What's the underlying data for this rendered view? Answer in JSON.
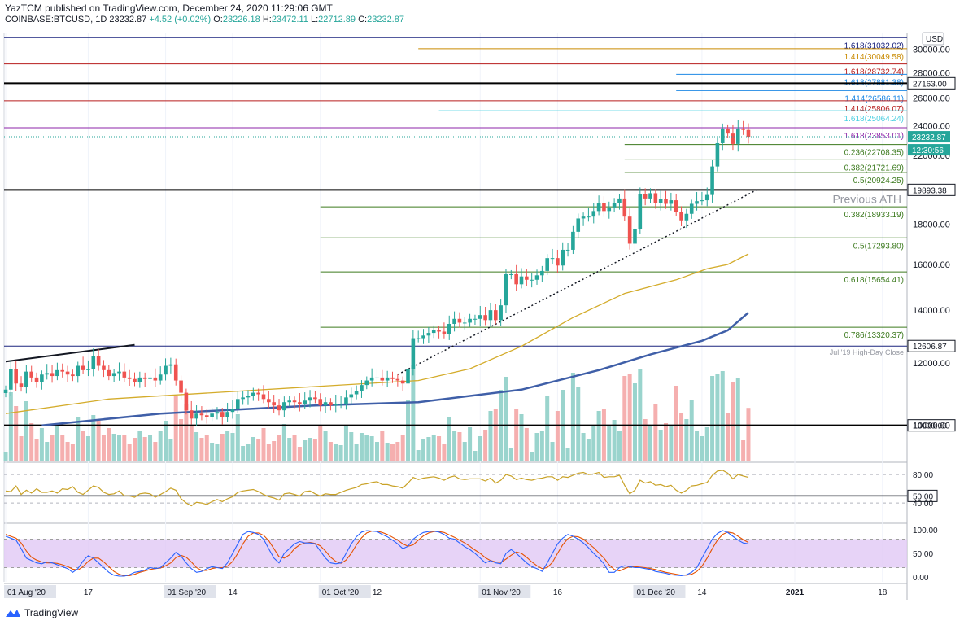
{
  "header": {
    "line1": "YazTCM published on TradingView.com, December 24, 2020 11:29:06 GMT",
    "symbol": "COINBASE:BTCUSD, 1D",
    "last": "23232.87",
    "change": "+4.52 (+0.02%)",
    "o_label": "O:",
    "o": "23226.18",
    "h_label": "H:",
    "h": "23472.11",
    "l_label": "L:",
    "l": "22712.89",
    "c_label": "C:",
    "c": "23232.87"
  },
  "footer": {
    "brand": "TradingView"
  },
  "colors": {
    "up": "#26a69a",
    "down": "#ef5350",
    "vol_up": "#8fcfc8",
    "vol_down": "#f4a6a6",
    "ma_fast": "#d4ac2b",
    "ma_slow": "#3f5fa8",
    "rsi": "#c9a227",
    "stoch_k": "#2962ff",
    "stoch_d": "#e65100",
    "stoch_band": "#e1c8f5",
    "fib_green": "#3c7a1e",
    "fib_blue": "#1e88e5",
    "fib_red": "#b71c1c",
    "fib_orange": "#c98a00",
    "fib_purple": "#8e24aa"
  },
  "chart_data": {
    "type": "candlestick",
    "pair": "BTCUSD",
    "currency": "USD",
    "yrange": [
      9000,
      31500
    ],
    "x_ticks": [
      {
        "label": "01 Aug '20",
        "day": 0,
        "boxed": true
      },
      {
        "label": "17",
        "day": 16
      },
      {
        "label": "01 Sep '20",
        "day": 31,
        "boxed": true
      },
      {
        "label": "14",
        "day": 44
      },
      {
        "label": "01 Oct '20",
        "day": 61,
        "boxed": true
      },
      {
        "label": "12",
        "day": 72
      },
      {
        "label": "01 Nov '20",
        "day": 92,
        "boxed": true
      },
      {
        "label": "16",
        "day": 107
      },
      {
        "label": "01 Dec '20",
        "day": 122,
        "boxed": true
      },
      {
        "label": "14",
        "day": 135
      },
      {
        "label": "2021",
        "day": 153,
        "bold": true
      },
      {
        "label": "18",
        "day": 170
      }
    ],
    "y_ticks": [
      "10000.00",
      "12000.00",
      "14000.00",
      "16000.00",
      "18000.00",
      "22000.00",
      "24000.00",
      "26000.00",
      "28000.00",
      "30000.00"
    ],
    "closes": [
      11100,
      11800,
      11300,
      11200,
      11700,
      11500,
      11350,
      11600,
      11650,
      11550,
      11750,
      11700,
      11600,
      11550,
      11900,
      11750,
      11800,
      12250,
      11900,
      11750,
      11550,
      11650,
      11700,
      11500,
      11450,
      11350,
      11500,
      11450,
      11500,
      11400,
      11600,
      11900,
      11950,
      11400,
      11000,
      10450,
      10200,
      10350,
      10300,
      10250,
      10350,
      10400,
      10250,
      10400,
      10500,
      10800,
      10850,
      10900,
      11000,
      10950,
      10800,
      10700,
      10600,
      10450,
      10700,
      10750,
      10700,
      10650,
      10750,
      10850,
      10800,
      10600,
      10700,
      10600,
      10650,
      10650,
      10850,
      10950,
      11050,
      11250,
      11400,
      11500,
      11500,
      11400,
      11500,
      11450,
      11400,
      11300,
      11800,
      12900,
      12900,
      13000,
      13100,
      13200,
      13150,
      13050,
      13450,
      13650,
      13500,
      13500,
      13650,
      13650,
      13800,
      13600,
      14000,
      13600,
      14200,
      15550,
      15550,
      15100,
      15450,
      15300,
      15300,
      15500,
      15700,
      16300,
      16300,
      15950,
      16700,
      16700,
      17600,
      18300,
      18400,
      18400,
      18700,
      19150,
      18700,
      18900,
      19150,
      19400,
      18400,
      17000,
      17750,
      19650,
      19400,
      19700,
      19150,
      19350,
      19100,
      19300,
      18650,
      18200,
      18550,
      19100,
      19250,
      19300,
      19600,
      21300,
      22800,
      23800,
      23450,
      22750,
      23800,
      23700,
      23232
    ],
    "ma_fast": [
      [
        0,
        10350
      ],
      [
        20,
        10800
      ],
      [
        40,
        11000
      ],
      [
        60,
        11200
      ],
      [
        80,
        11400
      ],
      [
        90,
        11800
      ],
      [
        100,
        12600
      ],
      [
        110,
        13700
      ],
      [
        120,
        14700
      ],
      [
        130,
        15300
      ],
      [
        136,
        15800
      ],
      [
        140,
        16000
      ],
      [
        144,
        16500
      ]
    ],
    "ma_slow": [
      [
        7,
        10000
      ],
      [
        30,
        10350
      ],
      [
        60,
        10600
      ],
      [
        80,
        10700
      ],
      [
        100,
        11100
      ],
      [
        115,
        11750
      ],
      [
        125,
        12300
      ],
      [
        135,
        12800
      ],
      [
        140,
        13200
      ],
      [
        144,
        13900
      ]
    ],
    "trendlines": [
      {
        "style": "solid",
        "from": [
          0,
          12050
        ],
        "to": [
          25,
          12650
        ]
      },
      {
        "style": "dotted",
        "from": [
          76,
          11600
        ],
        "to": [
          146,
          19950
        ]
      }
    ],
    "levels": [
      {
        "value": 31032.02,
        "label": "1.618(31032.02)",
        "color": "#1a237e",
        "from_day": -1
      },
      {
        "value": 30049.58,
        "label": "1.414(30049.58)",
        "color": "#c98a00",
        "from_day": 80
      },
      {
        "value": 28732.74,
        "label": "1.618(28732.74)",
        "color": "#b71c1c",
        "from_day": -1
      },
      {
        "value": 27881.38,
        "label": "1.618(27881.38)",
        "color": "#1e88e5",
        "from_day": 130
      },
      {
        "value": 27163.0,
        "label": "27163.00",
        "color": "#000000",
        "from_day": -1,
        "black": true
      },
      {
        "value": 26586.11,
        "label": "1.414(26586.11)",
        "color": "#1e88e5",
        "from_day": 130
      },
      {
        "value": 25806.07,
        "label": "1.414(25806.07)",
        "color": "#b71c1c",
        "from_day": -1
      },
      {
        "value": 25064.24,
        "label": "1.618(25064.24)",
        "color": "#4dd0e1",
        "from_day": 84
      },
      {
        "value": 23853.01,
        "label": "1.618(23853.01)",
        "color": "#8e24aa",
        "from_day": -1
      },
      {
        "value": 22708.35,
        "label": "0.236(22708.35)",
        "color": "#3c7a1e",
        "from_day": 120
      },
      {
        "value": 21721.69,
        "label": "0.382(21721.69)",
        "color": "#3c7a1e",
        "from_day": 120
      },
      {
        "value": 20924.25,
        "label": "0.5(20924.25)",
        "color": "#3c7a1e",
        "from_day": 120
      },
      {
        "value": 19893.38,
        "label": "19893.38",
        "color": "#000000",
        "from_day": -1,
        "black": true
      },
      {
        "value": 18933.19,
        "label": "0.382(18933.19)",
        "color": "#3c7a1e",
        "from_day": 61
      },
      {
        "value": 17293.8,
        "label": "0.5(17293.80)",
        "color": "#3c7a1e",
        "from_day": 61
      },
      {
        "value": 15654.41,
        "label": "0.618(15654.41)",
        "color": "#3c7a1e",
        "from_day": 61
      },
      {
        "value": 13320.37,
        "label": "0.786(13320.37)",
        "color": "#3c7a1e",
        "from_day": 61
      },
      {
        "value": 12606.87,
        "label": "12606.87",
        "color": "#1a237e",
        "from_day": -1,
        "navy": true
      },
      {
        "value": 10000.0,
        "label": "10000.00",
        "color": "#000000",
        "from_day": -1,
        "black": true
      }
    ],
    "last_price": {
      "value": 23232.87,
      "label": "23232.87",
      "countdown": "12:30:56"
    },
    "annotations": [
      {
        "text": "Previous ATH",
        "value": 19893.38
      },
      {
        "text": "Jul '19 High-Day Close",
        "value": 12606.87
      }
    ],
    "rsi": {
      "ticks": [
        "80.00",
        "50.00",
        "40.00"
      ],
      "level_boxed": "50.00",
      "values": [
        57,
        56,
        64,
        52,
        58,
        54,
        60,
        55,
        55,
        57,
        54,
        60,
        59,
        63,
        55,
        52,
        58,
        64,
        62,
        55,
        52,
        53,
        57,
        50,
        50,
        48,
        53,
        54,
        53,
        48,
        52,
        56,
        61,
        58,
        46,
        40,
        36,
        41,
        40,
        38,
        42,
        45,
        42,
        46,
        49,
        55,
        57,
        58,
        59,
        56,
        52,
        49,
        47,
        44,
        53,
        54,
        52,
        50,
        56,
        57,
        53,
        50,
        53,
        52,
        52,
        55,
        58,
        60,
        62,
        66,
        67,
        69,
        70,
        66,
        66,
        64,
        63,
        61,
        68,
        76,
        73,
        75,
        76,
        77,
        75,
        72,
        76,
        78,
        74,
        73,
        74,
        74,
        74,
        71,
        75,
        68,
        72,
        80,
        78,
        73,
        75,
        73,
        72,
        74,
        75,
        77,
        77,
        72,
        77,
        76,
        79,
        82,
        83,
        80,
        81,
        83,
        76,
        77,
        77,
        79,
        65,
        53,
        58,
        72,
        68,
        70,
        65,
        66,
        63,
        65,
        58,
        54,
        58,
        64,
        65,
        67,
        69,
        79,
        85,
        86,
        82,
        74,
        80,
        78,
        76
      ]
    },
    "stoch": {
      "ticks": [
        "100.00",
        "50.00",
        "0.00"
      ],
      "k": [
        86,
        82,
        78,
        60,
        40,
        35,
        30,
        28,
        32,
        30,
        26,
        22,
        18,
        10,
        18,
        34,
        45,
        40,
        30,
        20,
        10,
        4,
        2,
        2,
        5,
        10,
        12,
        15,
        20,
        18,
        20,
        30,
        40,
        52,
        44,
        30,
        18,
        10,
        12,
        18,
        22,
        20,
        18,
        30,
        50,
        70,
        90,
        96,
        94,
        90,
        80,
        60,
        40,
        30,
        50,
        60,
        70,
        75,
        72,
        72,
        70,
        55,
        40,
        30,
        28,
        30,
        50,
        70,
        85,
        95,
        98,
        97,
        96,
        90,
        85,
        78,
        70,
        60,
        65,
        80,
        88,
        94,
        96,
        97,
        95,
        90,
        82,
        80,
        72,
        64,
        58,
        50,
        40,
        30,
        35,
        30,
        28,
        50,
        58,
        50,
        40,
        30,
        22,
        18,
        12,
        30,
        50,
        70,
        82,
        90,
        86,
        80,
        72,
        62,
        50,
        40,
        28,
        10,
        10,
        20,
        24,
        22,
        20,
        20,
        18,
        16,
        12,
        10,
        8,
        5,
        4,
        3,
        5,
        10,
        20,
        40,
        60,
        80,
        92,
        98,
        94,
        86,
        78,
        72,
        70
      ],
      "d": [
        90,
        86,
        82,
        72,
        55,
        42,
        36,
        32,
        30,
        30,
        29,
        26,
        22,
        17,
        15,
        22,
        33,
        40,
        40,
        32,
        22,
        12,
        6,
        3,
        3,
        6,
        10,
        13,
        16,
        18,
        19,
        24,
        30,
        41,
        46,
        42,
        32,
        20,
        14,
        14,
        18,
        20,
        20,
        23,
        33,
        50,
        70,
        86,
        93,
        93,
        88,
        77,
        60,
        43,
        40,
        47,
        60,
        68,
        72,
        73,
        71,
        66,
        55,
        42,
        33,
        29,
        36,
        50,
        68,
        83,
        93,
        97,
        97,
        94,
        90,
        84,
        78,
        70,
        65,
        68,
        78,
        87,
        93,
        96,
        96,
        94,
        89,
        84,
        78,
        72,
        65,
        57,
        50,
        41,
        35,
        32,
        31,
        38,
        46,
        53,
        50,
        42,
        32,
        24,
        18,
        20,
        31,
        50,
        68,
        81,
        86,
        85,
        80,
        71,
        62,
        51,
        40,
        26,
        16,
        13,
        18,
        22,
        22,
        21,
        20,
        18,
        16,
        13,
        10,
        8,
        6,
        4,
        4,
        6,
        12,
        23,
        40,
        60,
        78,
        90,
        95,
        93,
        86,
        79,
        73
      ]
    }
  }
}
